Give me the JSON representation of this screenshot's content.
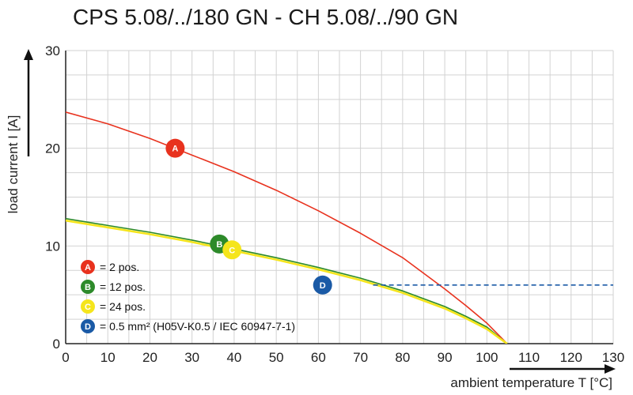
{
  "chart_data": {
    "type": "line",
    "title": "CPS 5.08/../180 GN - CH 5.08/../90 GN",
    "xlabel": "ambient temperature T [°C]",
    "ylabel": "load current I [A]",
    "xlim": [
      0,
      130
    ],
    "ylim": [
      0,
      30
    ],
    "xticks": [
      0,
      10,
      20,
      30,
      40,
      50,
      60,
      70,
      80,
      90,
      100,
      110,
      120,
      130
    ],
    "yticks": [
      0,
      10,
      20,
      30
    ],
    "grid": true,
    "legend_position": "bottom-left",
    "series": [
      {
        "name": "A",
        "color": "#e8321e",
        "x": [
          0,
          10,
          20,
          30,
          40,
          50,
          60,
          70,
          80,
          90,
          95,
          100,
          104.8
        ],
        "y": [
          23.7,
          22.5,
          21.0,
          19.3,
          17.6,
          15.7,
          13.6,
          11.3,
          8.8,
          5.6,
          3.9,
          2.1,
          0
        ]
      },
      {
        "name": "B",
        "color": "#2d8a2a",
        "x": [
          0,
          10,
          20,
          30,
          40,
          50,
          60,
          70,
          80,
          90,
          95,
          100,
          104.8
        ],
        "y": [
          12.8,
          12.1,
          11.4,
          10.6,
          9.7,
          8.8,
          7.8,
          6.7,
          5.4,
          3.8,
          2.8,
          1.7,
          0
        ]
      },
      {
        "name": "C",
        "color": "#f5e51c",
        "x": [
          0,
          10,
          20,
          30,
          40,
          50,
          60,
          70,
          80,
          90,
          95,
          100,
          104.8
        ],
        "y": [
          12.6,
          11.9,
          11.2,
          10.4,
          9.5,
          8.6,
          7.6,
          6.5,
          5.2,
          3.6,
          2.6,
          1.5,
          0
        ]
      },
      {
        "name": "D",
        "color": "#1a5aa6",
        "style": "dashed",
        "x": [
          73,
          130
        ],
        "y": [
          6,
          6
        ]
      }
    ],
    "markers": [
      {
        "label": "A",
        "x": 26,
        "y": 20,
        "color": "#e8321e"
      },
      {
        "label": "B",
        "x": 36.5,
        "y": 10.2,
        "color": "#2d8a2a"
      },
      {
        "label": "C",
        "x": 39.5,
        "y": 9.6,
        "color": "#f5e51c"
      },
      {
        "label": "D",
        "x": 61,
        "y": 6,
        "color": "#1a5aa6"
      }
    ],
    "legend": [
      {
        "key": "A",
        "text": "= 2 pos.",
        "color": "#e8321e"
      },
      {
        "key": "B",
        "text": "= 12 pos.",
        "color": "#2d8a2a"
      },
      {
        "key": "C",
        "text": "= 24 pos.",
        "color": "#f5e51c"
      },
      {
        "key": "D",
        "text": "= 0.5 mm² (H05V-K0.5 / IEC 60947-7-1)",
        "color": "#1a5aa6"
      }
    ]
  }
}
